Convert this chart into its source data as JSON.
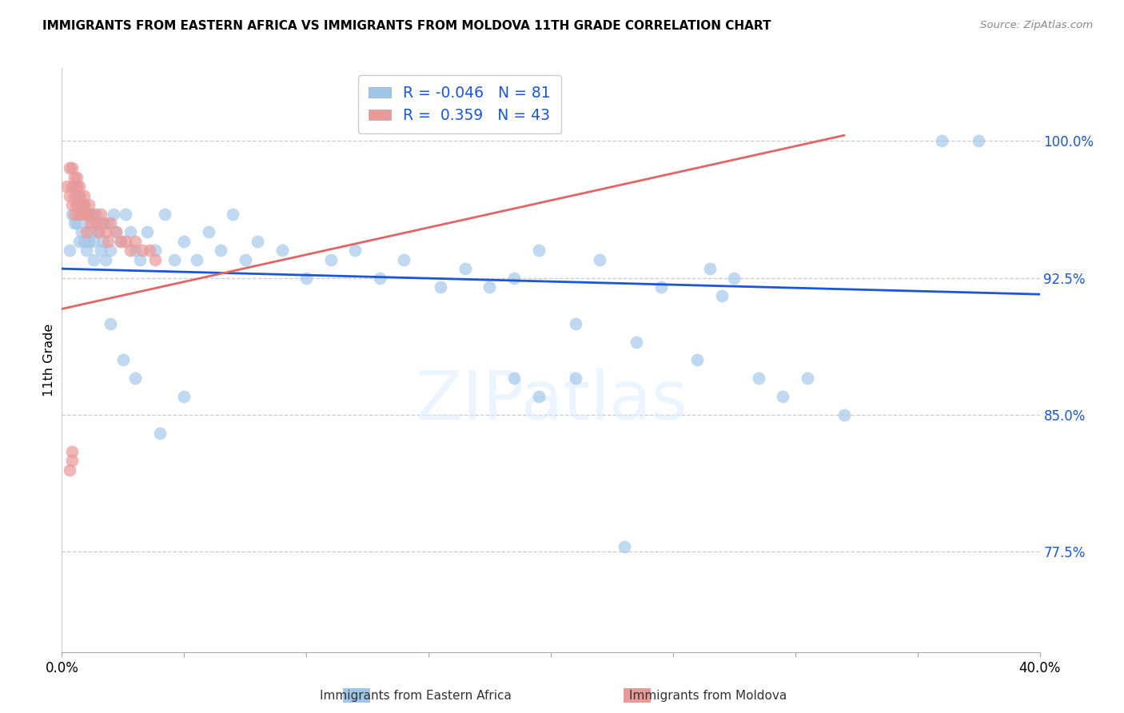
{
  "title": "IMMIGRANTS FROM EASTERN AFRICA VS IMMIGRANTS FROM MOLDOVA 11TH GRADE CORRELATION CHART",
  "source": "Source: ZipAtlas.com",
  "ylabel": "11th Grade",
  "y_ticks": [
    0.775,
    0.85,
    0.925,
    1.0
  ],
  "y_tick_labels": [
    "77.5%",
    "85.0%",
    "92.5%",
    "100.0%"
  ],
  "xlim": [
    0.0,
    0.4
  ],
  "ylim": [
    0.72,
    1.04
  ],
  "R_blue": -0.046,
  "N_blue": 81,
  "R_pink": 0.359,
  "N_pink": 43,
  "legend_label_blue": "Immigrants from Eastern Africa",
  "legend_label_pink": "Immigrants from Moldova",
  "blue_color": "#9fc5e8",
  "pink_color": "#ea9999",
  "trendline_blue_color": "#1a56db",
  "trendline_pink_color": "#e06666",
  "watermark": "ZIPatlas",
  "blue_trendline_x": [
    0.0,
    0.4
  ],
  "blue_trendline_y": [
    0.93,
    0.916
  ],
  "pink_trendline_x": [
    0.0,
    0.32
  ],
  "pink_trendline_y": [
    0.908,
    1.003
  ],
  "y_tick_color": "#1a56db",
  "x_tick_positions": [
    0.0,
    0.05,
    0.1,
    0.15,
    0.2,
    0.25,
    0.3,
    0.35,
    0.4
  ],
  "x_tick_labels": [
    "0.0%",
    "",
    "",
    "",
    "",
    "",
    "",
    "",
    "40.0%"
  ],
  "blue_scatter_x": [
    0.003,
    0.004,
    0.005,
    0.005,
    0.006,
    0.006,
    0.007,
    0.007,
    0.007,
    0.008,
    0.008,
    0.009,
    0.009,
    0.01,
    0.01,
    0.011,
    0.011,
    0.012,
    0.012,
    0.013,
    0.013,
    0.014,
    0.015,
    0.016,
    0.016,
    0.017,
    0.018,
    0.019,
    0.02,
    0.021,
    0.022,
    0.024,
    0.026,
    0.028,
    0.03,
    0.032,
    0.035,
    0.038,
    0.042,
    0.046,
    0.05,
    0.055,
    0.06,
    0.065,
    0.07,
    0.075,
    0.08,
    0.09,
    0.1,
    0.11,
    0.12,
    0.13,
    0.14,
    0.155,
    0.165,
    0.175,
    0.185,
    0.195,
    0.21,
    0.22,
    0.235,
    0.245,
    0.26,
    0.27,
    0.285,
    0.295,
    0.305,
    0.32,
    0.195,
    0.21,
    0.36,
    0.375,
    0.265,
    0.275,
    0.185,
    0.02,
    0.025,
    0.03,
    0.04,
    0.05,
    0.23
  ],
  "blue_scatter_y": [
    0.94,
    0.96,
    0.975,
    0.955,
    0.965,
    0.955,
    0.97,
    0.965,
    0.945,
    0.96,
    0.95,
    0.965,
    0.945,
    0.96,
    0.94,
    0.955,
    0.945,
    0.96,
    0.95,
    0.945,
    0.935,
    0.96,
    0.95,
    0.94,
    0.955,
    0.945,
    0.935,
    0.955,
    0.94,
    0.96,
    0.95,
    0.945,
    0.96,
    0.95,
    0.94,
    0.935,
    0.95,
    0.94,
    0.96,
    0.935,
    0.945,
    0.935,
    0.95,
    0.94,
    0.96,
    0.935,
    0.945,
    0.94,
    0.925,
    0.935,
    0.94,
    0.925,
    0.935,
    0.92,
    0.93,
    0.92,
    0.925,
    0.94,
    0.9,
    0.935,
    0.89,
    0.92,
    0.88,
    0.915,
    0.87,
    0.86,
    0.87,
    0.85,
    0.86,
    0.87,
    1.0,
    1.0,
    0.93,
    0.925,
    0.87,
    0.9,
    0.88,
    0.87,
    0.84,
    0.86,
    0.778
  ],
  "pink_scatter_x": [
    0.002,
    0.003,
    0.003,
    0.004,
    0.004,
    0.004,
    0.005,
    0.005,
    0.005,
    0.006,
    0.006,
    0.006,
    0.007,
    0.007,
    0.007,
    0.008,
    0.008,
    0.009,
    0.009,
    0.01,
    0.01,
    0.011,
    0.011,
    0.012,
    0.013,
    0.014,
    0.015,
    0.016,
    0.017,
    0.018,
    0.019,
    0.02,
    0.022,
    0.024,
    0.026,
    0.028,
    0.03,
    0.033,
    0.036,
    0.038,
    0.003,
    0.004,
    0.004
  ],
  "pink_scatter_y": [
    0.975,
    0.985,
    0.97,
    0.975,
    0.965,
    0.985,
    0.98,
    0.96,
    0.97,
    0.975,
    0.965,
    0.98,
    0.96,
    0.97,
    0.975,
    0.965,
    0.96,
    0.97,
    0.965,
    0.96,
    0.95,
    0.96,
    0.965,
    0.955,
    0.96,
    0.955,
    0.95,
    0.96,
    0.955,
    0.95,
    0.945,
    0.955,
    0.95,
    0.945,
    0.945,
    0.94,
    0.945,
    0.94,
    0.94,
    0.935,
    0.82,
    0.825,
    0.83
  ]
}
